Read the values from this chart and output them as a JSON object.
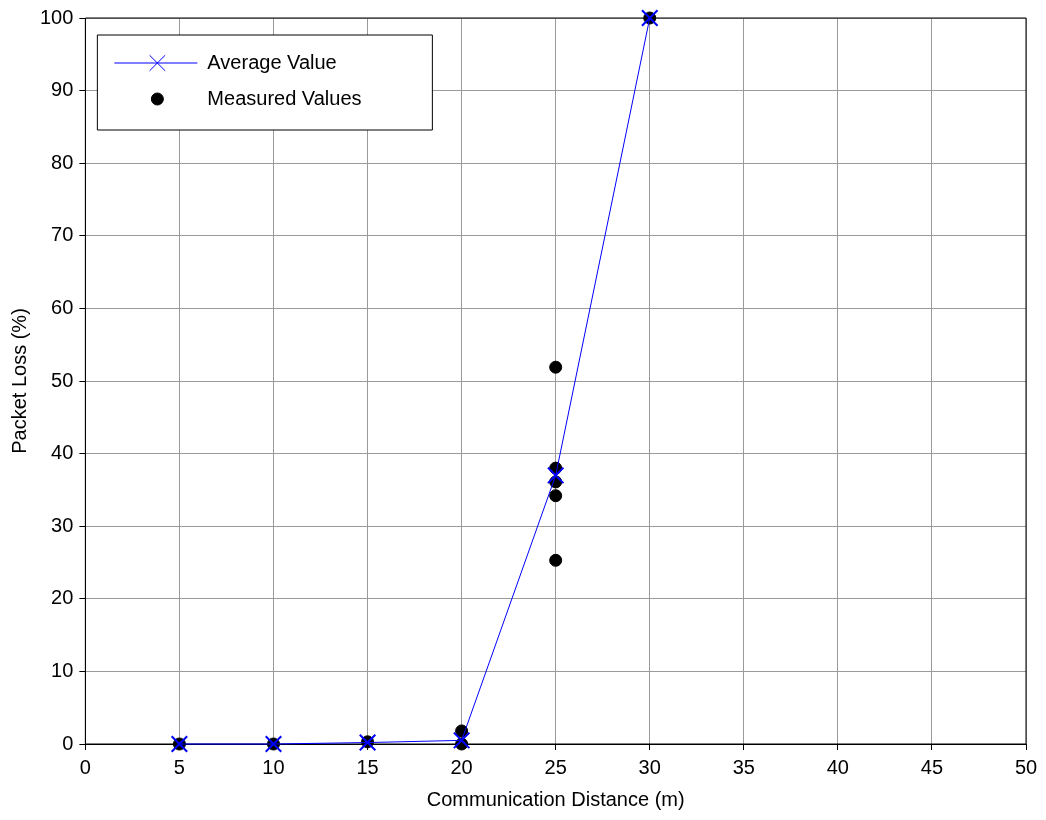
{
  "chart_data": {
    "type": "line",
    "xlabel": "Communication Distance (m)",
    "ylabel": "Packet Loss (%)",
    "xlim": [
      0,
      50
    ],
    "xticks": [
      0,
      5,
      10,
      15,
      20,
      25,
      30,
      35,
      40,
      45,
      50
    ],
    "ylim": [
      0,
      100
    ],
    "yticks": [
      0,
      10,
      20,
      30,
      40,
      50,
      60,
      70,
      80,
      90,
      100
    ],
    "grid": true,
    "legend": "top left",
    "series": [
      {
        "name": "Average Value",
        "type": "line",
        "color": "#0000ff",
        "marker": "cross",
        "x": [
          5,
          10,
          15,
          20,
          25,
          30
        ],
        "values": [
          0,
          0,
          0.2,
          0.5,
          37,
          100
        ]
      },
      {
        "name": "Measured Values",
        "type": "scatter",
        "color": "#000000",
        "marker": "circle",
        "x": [
          5,
          10,
          15,
          20,
          20,
          25,
          25,
          25,
          25,
          25,
          30
        ],
        "values": [
          0,
          0,
          0.3,
          0,
          1.8,
          51.9,
          38,
          36.1,
          34.2,
          25.3,
          100
        ]
      }
    ]
  }
}
